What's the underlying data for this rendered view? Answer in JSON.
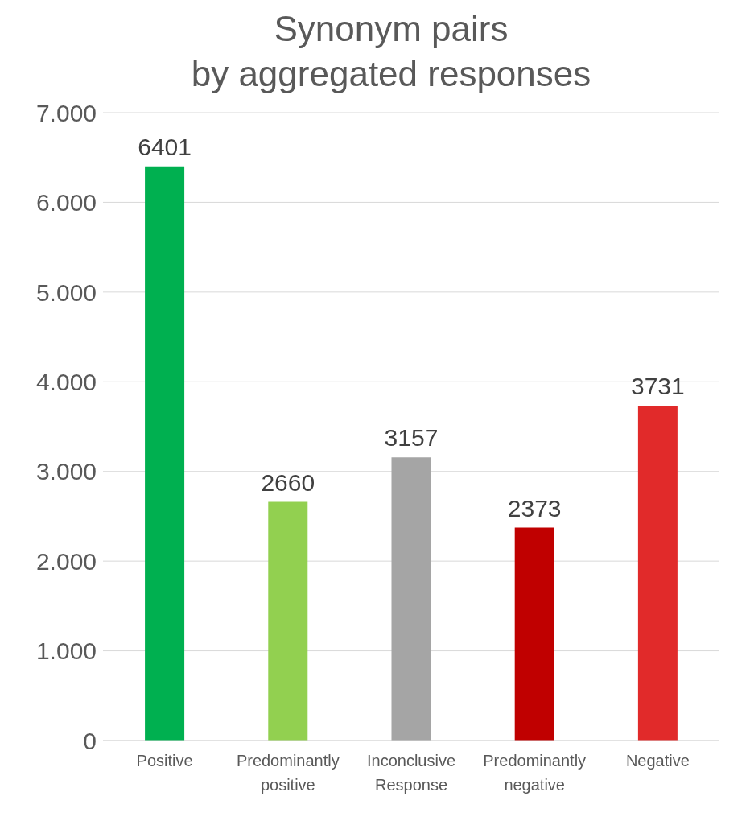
{
  "chart_data": {
    "type": "bar",
    "title": "Synonym pairs\nby aggregated responses",
    "categories": [
      "Positive",
      "Predominantly positive",
      "Inconclusive Response",
      "Predominantly negative",
      "Negative"
    ],
    "values": [
      6401,
      2660,
      3157,
      2373,
      3731
    ],
    "colors": [
      "#00b050",
      "#92d050",
      "#a5a5a5",
      "#c00000",
      "#e12a2a"
    ],
    "ylim": [
      0,
      7000
    ],
    "yticks": [
      {
        "value": 0,
        "label": "0"
      },
      {
        "value": 1000,
        "label": "1.000"
      },
      {
        "value": 2000,
        "label": "2.000"
      },
      {
        "value": 3000,
        "label": "3.000"
      },
      {
        "value": 4000,
        "label": "4.000"
      },
      {
        "value": 5000,
        "label": "5.000"
      },
      {
        "value": 6000,
        "label": "6.000"
      },
      {
        "value": 7000,
        "label": "7.000"
      }
    ],
    "grid": "y",
    "data_labels": true
  }
}
